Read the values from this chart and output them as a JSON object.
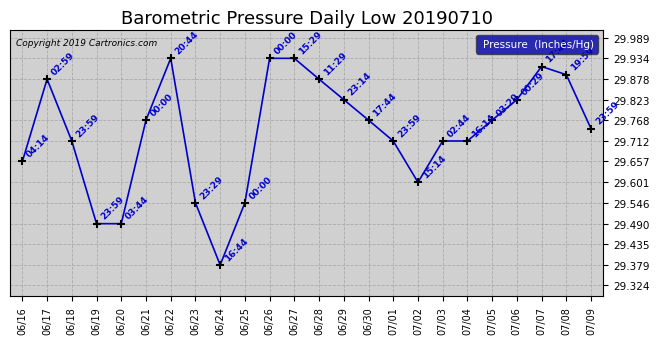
{
  "title": "Barometric Pressure Daily Low 20190710",
  "copyright": "Copyright 2019 Cartronics.com",
  "legend_label": "Pressure  (Inches/Hg)",
  "ylabel_values": [
    29.989,
    29.934,
    29.878,
    29.823,
    29.768,
    29.712,
    29.657,
    29.601,
    29.546,
    29.49,
    29.435,
    29.379,
    29.324
  ],
  "ylim": [
    29.295,
    30.01
  ],
  "dates": [
    "06/16",
    "06/17",
    "06/18",
    "06/19",
    "06/20",
    "06/21",
    "06/22",
    "06/23",
    "06/24",
    "06/25",
    "06/26",
    "06/27",
    "06/28",
    "06/29",
    "06/30",
    "07/01",
    "07/02",
    "07/03",
    "07/04",
    "07/05",
    "07/06",
    "07/07",
    "07/08",
    "07/09"
  ],
  "pressures": [
    29.657,
    29.878,
    29.712,
    29.49,
    29.49,
    29.768,
    29.934,
    29.546,
    29.379,
    29.546,
    29.934,
    29.934,
    29.878,
    29.823,
    29.768,
    29.712,
    29.601,
    29.712,
    29.712,
    29.768,
    29.823,
    29.912,
    29.89,
    29.745
  ],
  "time_labels": [
    "04:14",
    "02:59",
    "23:59",
    "23:59",
    "03:44",
    "00:00",
    "20:44",
    "23:29",
    "16:44",
    "00:00",
    "00:00",
    "15:29",
    "11:29",
    "23:14",
    "17:44",
    "23:59",
    "15:14",
    "02:44",
    "16:14",
    "03:29",
    "00:29",
    "17:44",
    "19:59",
    "23:59"
  ],
  "line_color": "#0000CC",
  "marker_color": "#000000",
  "bg_color": "#D0D0D0",
  "grid_color": "#AAAAAA",
  "title_fontsize": 13,
  "label_fontsize": 7.5
}
